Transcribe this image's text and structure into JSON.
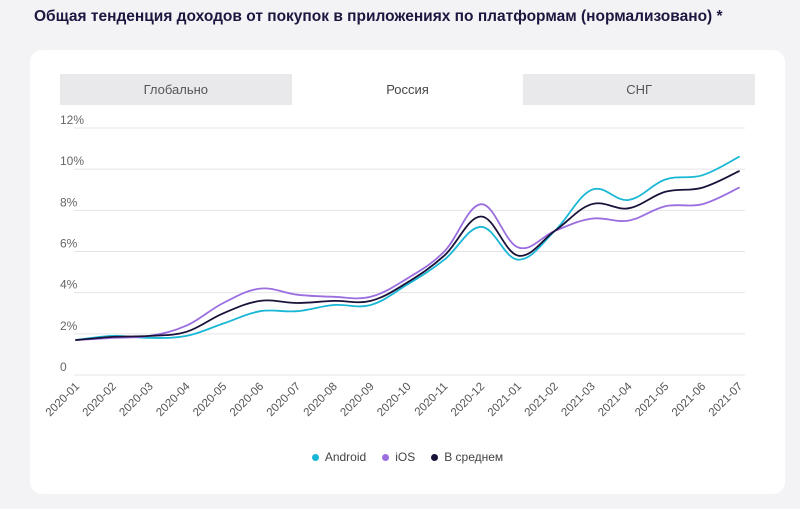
{
  "page": {
    "title": "Общая тенденция доходов от покупок в приложениях по платформам (нормализовано) *"
  },
  "tabs": [
    {
      "label": "Глобально",
      "active": false
    },
    {
      "label": "Россия",
      "active": true
    },
    {
      "label": "СНГ",
      "active": false
    }
  ],
  "chart_data": {
    "type": "line",
    "title": "",
    "xlabel": "",
    "ylabel": "",
    "x": [
      "2020-01",
      "2020-02",
      "2020-03",
      "2020-04",
      "2020-05",
      "2020-06",
      "2020-07",
      "2020-08",
      "2020-09",
      "2020-10",
      "2020-11",
      "2020-12",
      "2021-01",
      "2021-02",
      "2021-03",
      "2021-04",
      "2021-05",
      "2021-06",
      "2021-07"
    ],
    "y_ticks": [
      "0",
      "2%",
      "4%",
      "6%",
      "8%",
      "10%",
      "12%"
    ],
    "ylim": [
      0,
      12
    ],
    "grid": true,
    "legend_position": "bottom",
    "series": [
      {
        "name": "Android",
        "color": "#19b7d6",
        "values": [
          1.7,
          1.9,
          1.8,
          1.9,
          2.5,
          3.1,
          3.1,
          3.4,
          3.4,
          4.4,
          5.6,
          7.2,
          5.6,
          7.0,
          9.0,
          8.5,
          9.5,
          9.7,
          10.6
        ]
      },
      {
        "name": "iOS",
        "color": "#9b6ee0",
        "values": [
          1.7,
          1.8,
          1.9,
          2.4,
          3.5,
          4.2,
          3.9,
          3.8,
          3.8,
          4.7,
          6.0,
          8.3,
          6.2,
          7.0,
          7.6,
          7.5,
          8.2,
          8.3,
          9.1
        ]
      },
      {
        "name": "В среднем",
        "color": "#1a1238",
        "values": [
          1.7,
          1.85,
          1.9,
          2.1,
          3.0,
          3.6,
          3.5,
          3.6,
          3.6,
          4.5,
          5.8,
          7.7,
          5.8,
          7.0,
          8.3,
          8.1,
          8.9,
          9.1,
          9.9
        ]
      }
    ]
  }
}
